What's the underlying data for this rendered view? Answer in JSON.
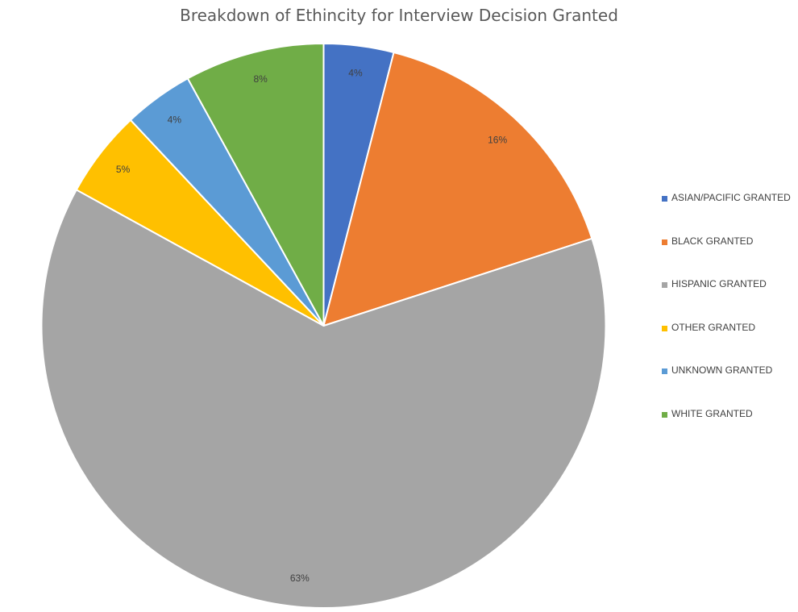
{
  "chart_data": {
    "type": "pie",
    "title": "Breakdown of Ethincity for Interview Decision Granted",
    "start_angle_deg": 0,
    "direction": "clockwise",
    "slices": [
      {
        "label": "ASIAN/PACIFIC GRANTED",
        "value": 4,
        "display": "4%",
        "color": "#4472C4"
      },
      {
        "label": "BLACK GRANTED",
        "value": 16,
        "display": "16%",
        "color": "#ED7D31"
      },
      {
        "label": "HISPANIC GRANTED",
        "value": 63,
        "display": "63%",
        "color": "#A5A5A5"
      },
      {
        "label": "OTHER GRANTED",
        "value": 5,
        "display": "5%",
        "color": "#FFC000"
      },
      {
        "label": "UNKNOWN GRANTED",
        "value": 4,
        "display": "4%",
        "color": "#5B9BD5"
      },
      {
        "label": "WHITE GRANTED",
        "value": 8,
        "display": "8%",
        "color": "#70AD47"
      }
    ],
    "legend_position": "right",
    "data_labels": "inside-end"
  }
}
